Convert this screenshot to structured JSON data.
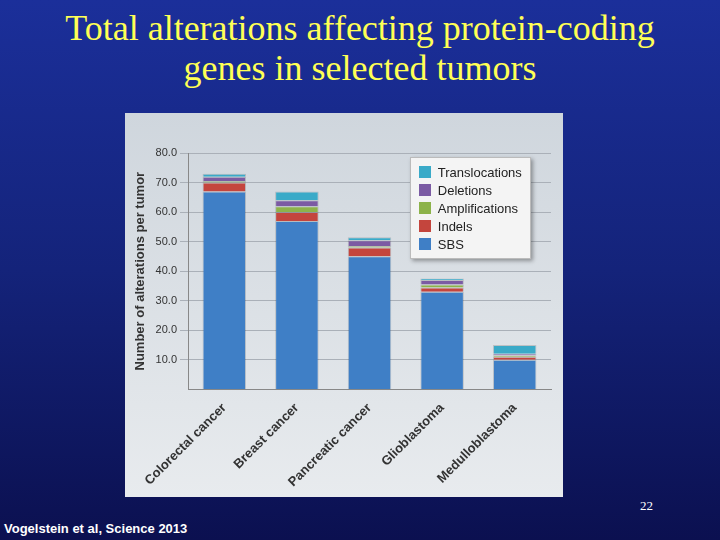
{
  "chart_data": {
    "type": "bar",
    "title": "Total alterations affecting protein-coding genes in selected tumors",
    "y_label": "Number of alterations per tumor",
    "categories": [
      "Colorectal cancer",
      "Breast cancer",
      "Pancreatic cancer",
      "Glioblastoma",
      "Medulloblastoma"
    ],
    "series": [
      {
        "name": "Translocations",
        "color": "#3aaac8",
        "values": [
          1,
          3,
          1,
          0.5,
          3
        ]
      },
      {
        "name": "Deletions",
        "color": "#7b5ba3",
        "values": [
          1.5,
          2,
          2,
          1.5,
          0.5
        ]
      },
      {
        "name": "Amplifications",
        "color": "#8db34a",
        "values": [
          0.5,
          2,
          0.5,
          1,
          0.5
        ]
      },
      {
        "name": "Indels",
        "color": "#c4453d",
        "values": [
          3,
          3,
          3,
          1.5,
          1
        ]
      },
      {
        "name": "SBS",
        "color": "#3f7fc6",
        "values": [
          67,
          57,
          45,
          33,
          10
        ]
      }
    ],
    "stacked": true,
    "ylim": [
      0,
      80
    ],
    "yticks": [
      {
        "value": 10,
        "label": "10.0"
      },
      {
        "value": 20,
        "label": "20.0"
      },
      {
        "value": 30,
        "label": "30.0"
      },
      {
        "value": 40,
        "label": "40.0"
      },
      {
        "value": 50,
        "label": "50.0"
      },
      {
        "value": 60,
        "label": "60.0"
      },
      {
        "value": 70,
        "label": "70.0"
      },
      {
        "value": 80,
        "label": "80.0"
      }
    ],
    "grid": true,
    "legend": "upper right",
    "annotations": [
      "Vogelstein et al, Science 2013",
      "22"
    ]
  }
}
